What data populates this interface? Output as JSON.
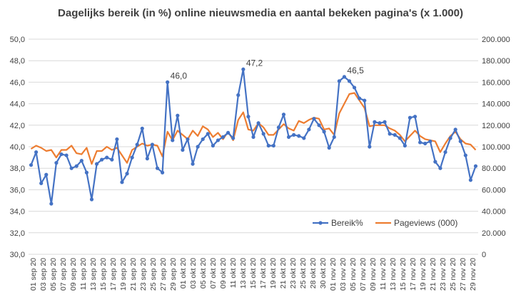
{
  "chart_data": {
    "type": "line",
    "title": "Dagelijks bereik (in %) online nieuwsmedia en aantal bekeken pagina's (x 1.000)",
    "xlabel": "",
    "ylabel": "",
    "y_left": {
      "range": [
        30,
        50
      ],
      "ticks": [
        30,
        32,
        34,
        36,
        38,
        40,
        42,
        44,
        46,
        48,
        50
      ],
      "tick_labels": [
        "30,0",
        "32,0",
        "34,0",
        "36,0",
        "38,0",
        "40,0",
        "42,0",
        "44,0",
        "46,0",
        "48,0",
        "50,0"
      ]
    },
    "y_right": {
      "range": [
        0,
        200000
      ],
      "ticks": [
        0,
        20000,
        40000,
        60000,
        80000,
        100000,
        120000,
        140000,
        160000,
        180000,
        200000
      ],
      "tick_labels": [
        "0",
        "20.000",
        "40.000",
        "60.000",
        "80.000",
        "100.000",
        "120.000",
        "140.000",
        "160.000",
        "180.000",
        "200.000"
      ]
    },
    "x_tick_labels": [
      "01 sep 20",
      "03 sep 20",
      "05 sep 20",
      "07 sep 20",
      "09 sep 20",
      "11 sep 20",
      "13 sep 20",
      "15 sep 20",
      "17 sep 20",
      "19 sep 20",
      "21 sep 20",
      "23 sep 20",
      "25 sep 20",
      "27 sep 20",
      "29 sep 20",
      "01 okt 20",
      "03 okt 20",
      "05 okt 20",
      "07 okt 20",
      "09 okt 20",
      "11 okt 20",
      "13 okt 20",
      "15 okt 20",
      "17 okt 20",
      "19 okt 20",
      "21 okt 20",
      "23 okt 20",
      "25 okt 20",
      "28 okt 20",
      "30 okt 20",
      "01 nov 20",
      "03 nov 20",
      "05 nov 20",
      "07 nov 20",
      "09 nov 20",
      "11 nov 20",
      "13 nov 20",
      "15 nov 20",
      "17 nov 20",
      "19 nov 20",
      "21 nov 20",
      "23 nov 20",
      "25 nov 20",
      "27 nov 20",
      "29 nov 20"
    ],
    "series": [
      {
        "name": "Bereik%",
        "axis": "left",
        "color": "#4472C4",
        "marker": "circle",
        "values": [
          38.3,
          39.5,
          36.6,
          37.4,
          34.7,
          38.5,
          39.3,
          39.2,
          38.0,
          38.2,
          38.7,
          37.6,
          35.1,
          38.4,
          38.8,
          39.0,
          38.8,
          40.7,
          36.7,
          37.5,
          39.0,
          40.2,
          41.7,
          38.9,
          40.2,
          38.0,
          37.6,
          46.0,
          40.6,
          42.9,
          39.7,
          40.7,
          38.4,
          40.0,
          40.7,
          41.2,
          40.1,
          40.6,
          40.9,
          41.3,
          40.8,
          44.8,
          47.2,
          42.8,
          40.9,
          42.2,
          41.2,
          40.1,
          40.1,
          41.8,
          43.0,
          40.9,
          41.1,
          41.0,
          40.8,
          41.6,
          42.6,
          42.0,
          41.4,
          39.9,
          40.9,
          46.1,
          46.5,
          46.1,
          45.5,
          44.5,
          44.3,
          40.0,
          42.3,
          42.2,
          42.3,
          41.2,
          41.1,
          40.8,
          40.1,
          42.7,
          42.8,
          40.4,
          40.3,
          40.5,
          38.6,
          38.0,
          39.5,
          40.8,
          41.6,
          40.5,
          39.2,
          36.9,
          38.2
        ]
      },
      {
        "name": "Pageviews (000)",
        "axis": "right",
        "color": "#ED7D31",
        "marker": "none",
        "values": [
          98000,
          101000,
          99000,
          96000,
          97000,
          90000,
          97000,
          97000,
          101000,
          94000,
          93000,
          99000,
          84000,
          96000,
          96000,
          100000,
          97000,
          99000,
          92000,
          85000,
          97000,
          100000,
          103000,
          101000,
          102000,
          101000,
          91000,
          114000,
          106000,
          115000,
          111000,
          107000,
          115000,
          110000,
          119000,
          116000,
          109000,
          113000,
          107000,
          114000,
          106000,
          125000,
          132000,
          116000,
          115000,
          122000,
          118000,
          111000,
          111000,
          116000,
          121000,
          117000,
          115000,
          124000,
          122000,
          125000,
          127000,
          126000,
          116000,
          117000,
          111000,
          131000,
          140000,
          149000,
          150000,
          143000,
          136000,
          119000,
          120000,
          120000,
          120000,
          117000,
          115000,
          111000,
          105000,
          110000,
          115000,
          110000,
          107000,
          106000,
          105000,
          95000,
          103000,
          110000,
          114000,
          107000,
          103000,
          102000,
          97000
        ]
      }
    ],
    "annotations": [
      {
        "label": "46,0",
        "series": "Bereik%",
        "index": 27
      },
      {
        "label": "47,2",
        "series": "Bereik%",
        "index": 42
      },
      {
        "label": "46,5",
        "series": "Bereik%",
        "index": 62
      }
    ],
    "grid": true,
    "legend_position": "bottom-right"
  }
}
